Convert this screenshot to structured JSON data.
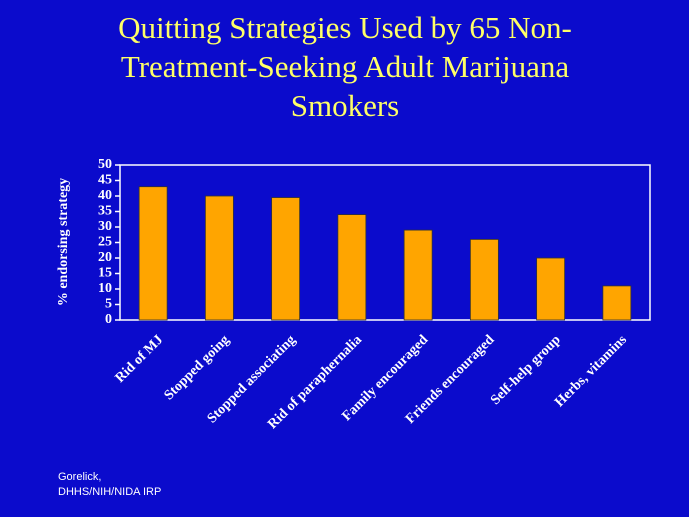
{
  "chart_data": {
    "type": "bar",
    "title": "Quitting Strategies Used by 65 Non-Treatment-Seeking Adult Marijuana Smokers",
    "y_label": "% endorsing strategy",
    "categories": [
      "Rid of MJ",
      "Stopped going",
      "Stopped associating",
      "Rid of paraphernalia",
      "Family encouraged",
      "Friends encouraged",
      "Self-help group",
      "Herbs, vitamins"
    ],
    "values": [
      43,
      40,
      39.5,
      34,
      29,
      26,
      20,
      11
    ],
    "color": "#ffa500",
    "ylim": [
      0,
      50
    ],
    "yticks": [
      0,
      5,
      10,
      15,
      20,
      25,
      30,
      35,
      40,
      45,
      50
    ],
    "grid": false,
    "source": [
      "Gorelick,",
      "DHHS/NIH/NIDA IRP"
    ]
  }
}
